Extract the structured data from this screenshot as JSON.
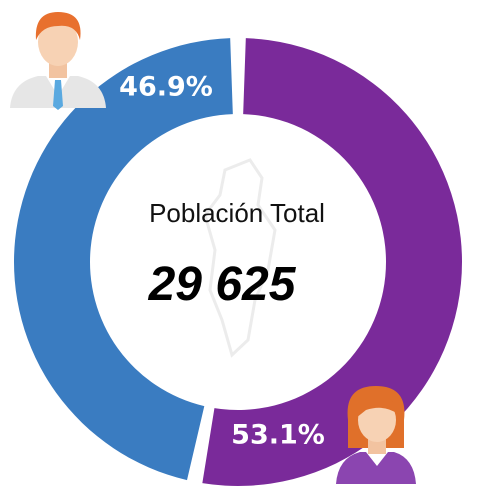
{
  "chart_data": {
    "type": "donut",
    "title": "Población Total",
    "total": {
      "value": 29625,
      "label": "29 625"
    },
    "values": [
      46.9,
      53.1
    ],
    "value_labels": [
      "46.9%",
      "53.1%"
    ],
    "colors": [
      "#3a7cc1",
      "#7a2a9a"
    ]
  }
}
